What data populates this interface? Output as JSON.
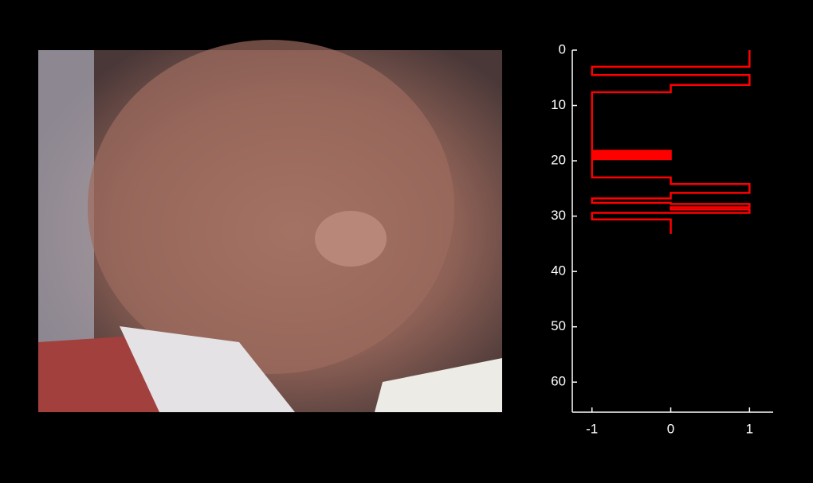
{
  "chart_data": {
    "type": "line",
    "xlim": [
      -1.25,
      1.3
    ],
    "xticks": [
      -1,
      0,
      1
    ],
    "ylim": [
      0,
      65
    ],
    "yticks": [
      0,
      10,
      20,
      30,
      40,
      50,
      60
    ],
    "y_reversed": true,
    "series": [
      {
        "color": "#ff0000",
        "x": [
          0,
          3,
          3,
          4.5,
          4.5,
          6.3,
          6.3,
          7.6,
          7.6,
          18.2,
          18.2,
          18.5,
          18.5,
          18.8,
          18.8,
          19.1,
          19.1,
          19.4,
          19.4,
          19.7,
          19.7,
          23,
          23,
          24.2,
          24.2,
          25.8,
          25.8,
          26.8,
          26.8,
          27.6,
          27.6,
          27.8,
          27.8,
          28.4,
          28.4,
          28.8,
          28.8,
          29.4,
          29.4,
          30.6,
          30.6,
          33.2
        ],
        "values": [
          1,
          1,
          -1,
          -1,
          1,
          1,
          0,
          0,
          -1,
          -1,
          0,
          0,
          -1,
          -1,
          0,
          0,
          -1,
          -1,
          0,
          0,
          -1,
          -1,
          0,
          0,
          1,
          1,
          0,
          0,
          -1,
          -1,
          0,
          0,
          1,
          1,
          0,
          0,
          1,
          1,
          -1,
          -1,
          0,
          0
        ]
      }
    ]
  }
}
